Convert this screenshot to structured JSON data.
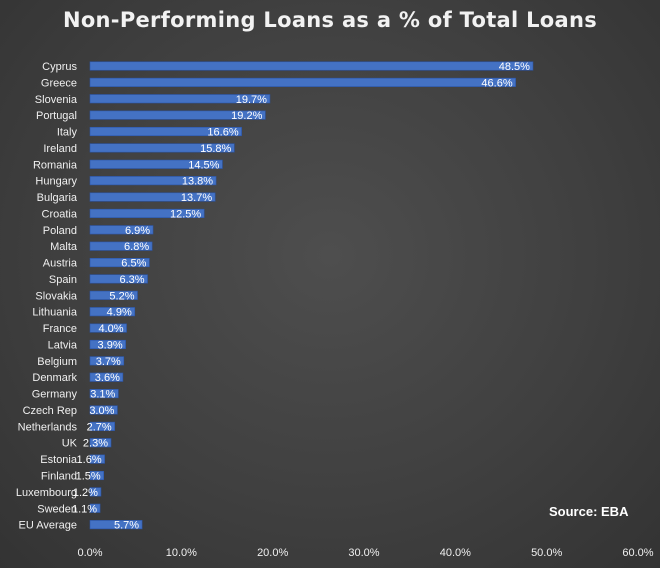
{
  "chart_title": "Non-Performing Loans as a % of Total Loans",
  "source_note": "Source: EBA",
  "colors": {
    "bar_fill": "#4472c4",
    "bar_edge": "#2b55a8",
    "background": "#404040",
    "text": "#f0f0f0"
  },
  "chart_data": {
    "type": "bar",
    "orientation": "horizontal",
    "title": "Non-Performing Loans as a % of Total Loans",
    "xlabel": "",
    "ylabel": "",
    "xlim": [
      0,
      60
    ],
    "x_ticks": [
      "0.0%",
      "10.0%",
      "20.0%",
      "30.0%",
      "40.0%",
      "50.0%",
      "60.0%"
    ],
    "grid": false,
    "legend": "none",
    "categories": [
      "Cyprus",
      "Greece",
      "Slovenia",
      "Portugal",
      "Italy",
      "Ireland",
      "Romania",
      "Hungary",
      "Bulgaria",
      "Croatia",
      "Poland",
      "Malta",
      "Austria",
      "Spain",
      "Slovakia",
      "Lithuania",
      "France",
      "Latvia",
      "Belgium",
      "Denmark",
      "Germany",
      "Czech Rep",
      "Netherlands",
      "UK",
      "Estonia",
      "Finland",
      "Luxembourg",
      "Sweden",
      "EU Average"
    ],
    "values": [
      48.5,
      46.6,
      19.7,
      19.2,
      16.6,
      15.8,
      14.5,
      13.8,
      13.7,
      12.5,
      6.9,
      6.8,
      6.5,
      6.3,
      5.2,
      4.9,
      4.0,
      3.9,
      3.7,
      3.6,
      3.1,
      3.0,
      2.7,
      2.3,
      1.6,
      1.5,
      1.2,
      1.1,
      5.7
    ],
    "value_labels": [
      "48.5%",
      "46.6%",
      "19.7%",
      "19.2%",
      "16.6%",
      "15.8%",
      "14.5%",
      "13.8%",
      "13.7%",
      "12.5%",
      "6.9%",
      "6.8%",
      "6.5%",
      "6.3%",
      "5.2%",
      "4.9%",
      "4.0%",
      "3.9%",
      "3.7%",
      "3.6%",
      "3.1%",
      "3.0%",
      "2.7%",
      "2.3%",
      "1.6%",
      "1.5%",
      "1.2%",
      "1.1%",
      "5.7%"
    ]
  }
}
